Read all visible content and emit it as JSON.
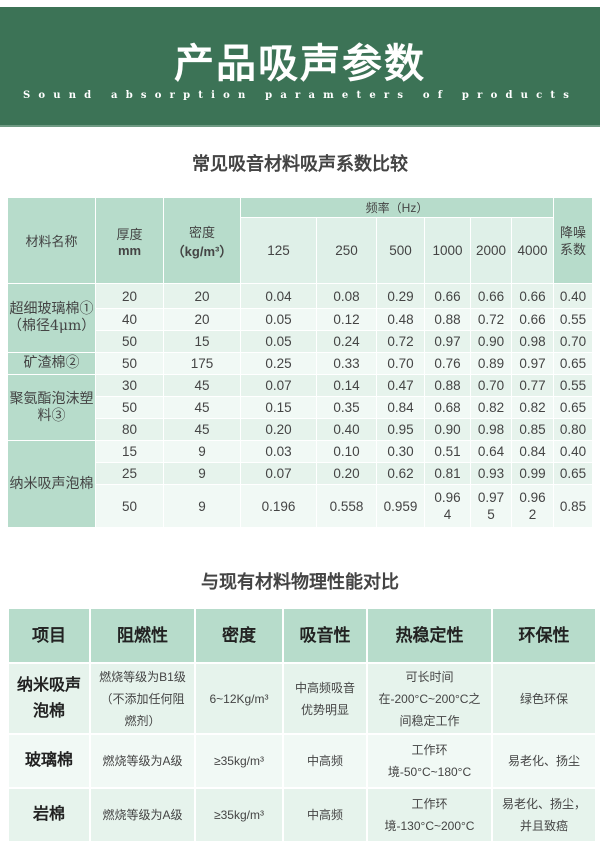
{
  "banner": {
    "title": "产品吸声参数",
    "subtitle": "Sound absorption parameters of products",
    "color": "#3c7356"
  },
  "table1": {
    "title": "常见吸音材料吸声系数比较",
    "headers": {
      "name": "材料名称",
      "thickness": "厚度",
      "thickness_unit": "mm",
      "density": "密度",
      "density_unit": "（kg/m³）",
      "frequency": "频率（Hz）",
      "freqs": [
        "125",
        "250",
        "500",
        "1000",
        "2000",
        "4000"
      ],
      "nrc": "降噪系数"
    },
    "groups": [
      {
        "name": "超细玻璃棉①（棉径4μm）",
        "rows": [
          [
            "20",
            "20",
            "0.04",
            "0.08",
            "0.29",
            "0.66",
            "0.66",
            "0.66",
            "0.40"
          ],
          [
            "40",
            "20",
            "0.05",
            "0.12",
            "0.48",
            "0.88",
            "0.72",
            "0.66",
            "0.55"
          ],
          [
            "50",
            "15",
            "0.05",
            "0.24",
            "0.72",
            "0.97",
            "0.90",
            "0.98",
            "0.70"
          ]
        ]
      },
      {
        "name": "矿渣棉②",
        "rows": [
          [
            "50",
            "175",
            "0.25",
            "0.33",
            "0.70",
            "0.76",
            "0.89",
            "0.97",
            "0.65"
          ]
        ]
      },
      {
        "name": "聚氨酯泡沫塑料③",
        "rows": [
          [
            "30",
            "45",
            "0.07",
            "0.14",
            "0.47",
            "0.88",
            "0.70",
            "0.77",
            "0.55"
          ],
          [
            "50",
            "45",
            "0.15",
            "0.35",
            "0.84",
            "0.68",
            "0.82",
            "0.82",
            "0.65"
          ],
          [
            "80",
            "45",
            "0.20",
            "0.40",
            "0.95",
            "0.90",
            "0.98",
            "0.85",
            "0.80"
          ]
        ]
      },
      {
        "name": "纳米吸声泡棉",
        "rows": [
          [
            "15",
            "9",
            "0.03",
            "0.10",
            "0.30",
            "0.51",
            "0.64",
            "0.84",
            "0.40"
          ],
          [
            "25",
            "9",
            "0.07",
            "0.20",
            "0.62",
            "0.81",
            "0.93",
            "0.99",
            "0.65"
          ],
          [
            "50",
            "9",
            "0.196",
            "0.558",
            "0.959",
            "0.964",
            "0.975",
            "0.962",
            "0.85"
          ]
        ]
      }
    ]
  },
  "table2": {
    "title": "与现有材料物理性能对比",
    "headers": [
      "项目",
      "阻燃性",
      "密度",
      "吸音性",
      "热稳定性",
      "环保性"
    ],
    "rows": [
      [
        "纳米吸声泡棉",
        "燃烧等级为B1级（不添加任何阻燃剂）",
        "6~12Kg/m³",
        "中高频吸音优势明显",
        "可长时间在-200°C~200°C之间稳定工作",
        "绿色环保"
      ],
      [
        "玻璃棉",
        "燃烧等级为A级",
        "≥35kg/m³",
        "中高频",
        "工作环境-50°C~180°C",
        "易老化、扬尘"
      ],
      [
        "岩棉",
        "燃烧等级为A级",
        "≥35kg/m³",
        "中高频",
        "工作环境-130°C~200°C",
        "易老化、扬尘，并且致癌"
      ]
    ]
  }
}
